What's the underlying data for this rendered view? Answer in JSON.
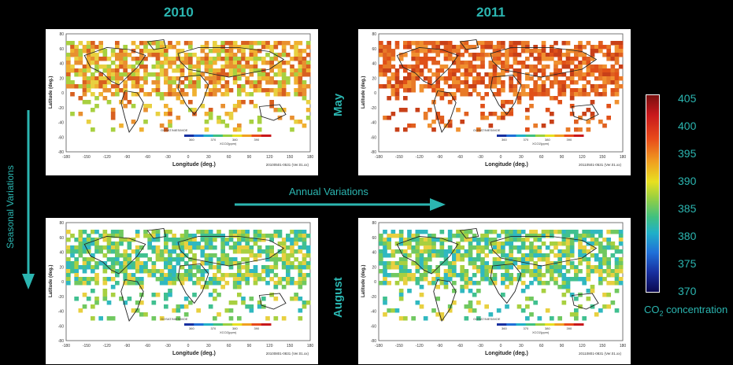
{
  "years": [
    "2010",
    "2011"
  ],
  "months": [
    "May",
    "August"
  ],
  "labels": {
    "seasonal": "Seasonal Variations",
    "annual": "Annual Variations"
  },
  "colorbar": {
    "ticks": [
      "405",
      "400",
      "395",
      "390",
      "385",
      "380",
      "375",
      "370"
    ],
    "label_prefix": "CO",
    "label_sub": "2",
    "label_suffix": " concentration"
  },
  "panel_text": {
    "ylabel": "Latitude (deg.)",
    "xlabel": "Longitude (deg.)",
    "lat_ticks": [
      "80",
      "60",
      "40",
      "20",
      "0",
      "-20",
      "-40",
      "-60",
      "-80"
    ],
    "lon_ticks": [
      "-180",
      "-150",
      "-120",
      "-90",
      "-60",
      "-30",
      "0",
      "30",
      "60",
      "90",
      "120",
      "150",
      "180"
    ],
    "mini_cbar_ticks": [
      "360",
      "370",
      "380",
      "390"
    ],
    "mini_cbar_label": "XCO2(ppm)",
    "satellite_label": "GOSAT/NIES/MOE",
    "stamps": [
      "20100501-0531 (Ver.01.xx)",
      "20110501-0531 (Ver.01.xx)",
      "20100801-0831 (Ver.01.xx)",
      "20110801-0831 (Ver.01.xx)"
    ]
  },
  "colors": {
    "accent": "#2bb5b0",
    "background": "#000000"
  }
}
